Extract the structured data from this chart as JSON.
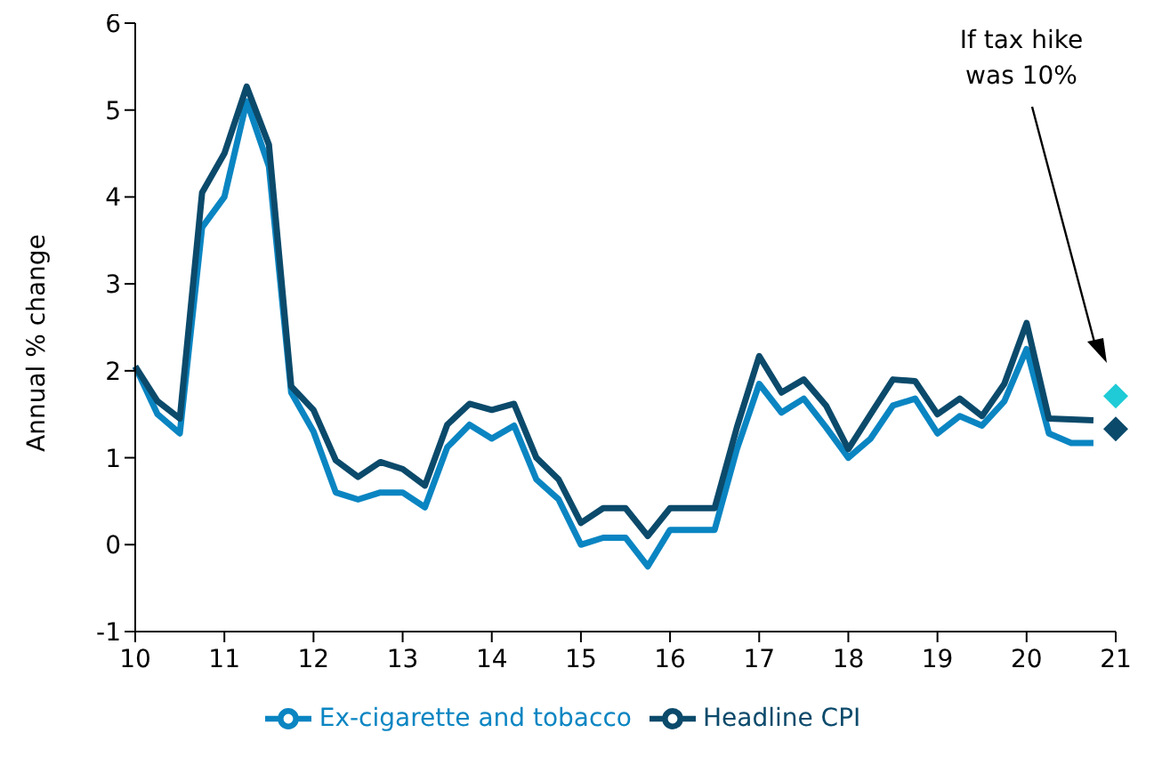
{
  "chart_data": {
    "type": "line",
    "ylabel": "Annual % change",
    "xlim": [
      10,
      21
    ],
    "xticks": [
      10,
      11,
      12,
      13,
      14,
      15,
      16,
      17,
      18,
      19,
      20,
      21
    ],
    "ylim": [
      -1,
      6
    ],
    "yticks": [
      -1,
      0,
      1,
      2,
      3,
      4,
      5,
      6
    ],
    "x": [
      10,
      10.25,
      10.5,
      10.75,
      11,
      11.25,
      11.5,
      11.75,
      12,
      12.25,
      12.5,
      12.75,
      13,
      13.25,
      13.5,
      13.75,
      14,
      14.25,
      14.5,
      14.75,
      15,
      15.25,
      15.5,
      15.75,
      16,
      16.25,
      16.5,
      16.75,
      17,
      17.25,
      17.5,
      17.75,
      18,
      18.25,
      18.5,
      18.75,
      19,
      19.25,
      19.5,
      19.75,
      20,
      20.25,
      20.5,
      20.75
    ],
    "series": [
      {
        "name": "Ex-cigarette and tobacco",
        "color": "#0a85c2",
        "values": [
          2.05,
          1.5,
          1.28,
          3.65,
          4.0,
          5.1,
          4.35,
          1.75,
          1.3,
          0.6,
          0.52,
          0.6,
          0.6,
          0.43,
          1.12,
          1.38,
          1.22,
          1.37,
          0.75,
          0.52,
          0.0,
          0.08,
          0.08,
          -0.25,
          0.17,
          0.17,
          0.17,
          1.1,
          1.85,
          1.52,
          1.68,
          1.35,
          1.0,
          1.22,
          1.6,
          1.68,
          1.28,
          1.48,
          1.37,
          1.65,
          2.25,
          1.28,
          1.17,
          1.17
        ]
      },
      {
        "name": "Headline CPI",
        "color": "#0b4a6b",
        "values": [
          2.05,
          1.65,
          1.45,
          4.05,
          4.5,
          5.27,
          4.6,
          1.82,
          1.55,
          0.97,
          0.78,
          0.95,
          0.87,
          0.68,
          1.38,
          1.62,
          1.55,
          1.62,
          1.0,
          0.75,
          0.25,
          0.42,
          0.42,
          0.1,
          0.42,
          0.42,
          0.42,
          1.35,
          2.17,
          1.75,
          1.9,
          1.6,
          1.1,
          1.5,
          1.9,
          1.88,
          1.5,
          1.68,
          1.48,
          1.85,
          2.55,
          1.45,
          1.44,
          1.43
        ]
      },
      {
        "type": "scatter",
        "marker": "diamond",
        "color": "#1ecbd6",
        "x": [
          21
        ],
        "values": [
          1.71
        ]
      },
      {
        "type": "scatter",
        "marker": "diamond",
        "color": "#0b4a6b",
        "x": [
          21
        ],
        "values": [
          1.33
        ]
      }
    ],
    "annotations": [
      "If tax hike was 10%"
    ],
    "marker": "none",
    "line_style": "solid",
    "grid": false,
    "legend": "bottom"
  }
}
